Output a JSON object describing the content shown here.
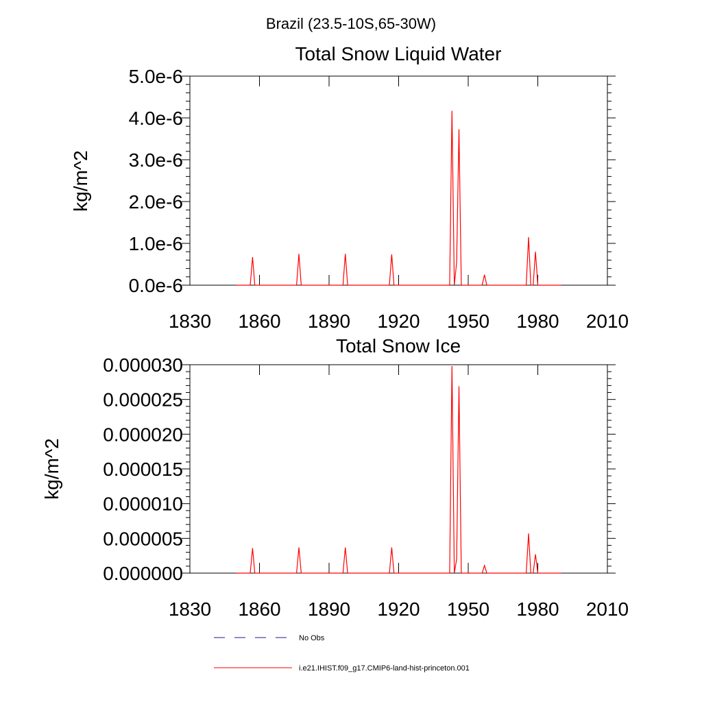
{
  "figure": {
    "region_title": "Brazil (23.5-10S,65-30W)"
  },
  "legend": {
    "entries": [
      {
        "label": "No Obs",
        "color": "#1a1a8c",
        "style": "dashed"
      },
      {
        "label": "i.e21.IHIST.f09_g17.CMIP6-land-hist-princeton.001",
        "color": "#ff0000",
        "style": "solid"
      }
    ]
  },
  "chart_data": [
    {
      "type": "line",
      "title": "Total Snow Liquid Water",
      "xlabel": "",
      "ylabel": "kg/m^2",
      "xlim": [
        1830,
        2010
      ],
      "ylim": [
        0,
        5e-06
      ],
      "xticks": [
        1830,
        1860,
        1890,
        1920,
        1950,
        1980,
        2010
      ],
      "xtick_labels": [
        "1830",
        "1860",
        "1890",
        "1920",
        "1950",
        "1980",
        "2010"
      ],
      "yticks": [
        0,
        1e-06,
        2e-06,
        3e-06,
        4e-06,
        5e-06
      ],
      "ytick_labels": [
        "0.0e-6",
        "1.0e-6",
        "2.0e-6",
        "3.0e-6",
        "4.0e-6",
        "5.0e-6"
      ],
      "grid": false,
      "series": [
        {
          "name": "i.e21.IHIST.f09_g17.CMIP6-land-hist-princeton.001",
          "color": "#ff0000",
          "x": [
            1850,
            1856,
            1857,
            1858,
            1876,
            1877,
            1878,
            1896,
            1897,
            1898,
            1916,
            1917,
            1918,
            1941,
            1942,
            1943,
            1944,
            1945,
            1946,
            1947,
            1948,
            1956,
            1957,
            1958,
            1975,
            1976,
            1977,
            1978,
            1979,
            1980,
            1990
          ],
          "y": [
            0,
            0,
            6.7e-07,
            0,
            0,
            7.5e-07,
            0,
            0,
            7.5e-07,
            0,
            0,
            7.4e-07,
            0,
            0,
            0,
            4.17e-06,
            0,
            5.5e-07,
            3.73e-06,
            0,
            0,
            0,
            2.5e-07,
            0,
            0,
            1.15e-06,
            0,
            0,
            8e-07,
            0,
            0
          ]
        }
      ]
    },
    {
      "type": "line",
      "title": "Total Snow Ice",
      "xlabel": "",
      "ylabel": "kg/m^2",
      "xlim": [
        1830,
        2010
      ],
      "ylim": [
        0,
        3e-05
      ],
      "xticks": [
        1830,
        1860,
        1890,
        1920,
        1950,
        1980,
        2010
      ],
      "xtick_labels": [
        "1830",
        "1860",
        "1890",
        "1920",
        "1950",
        "1980",
        "2010"
      ],
      "yticks": [
        0,
        5e-06,
        1e-05,
        1.5e-05,
        2e-05,
        2.5e-05,
        3e-05
      ],
      "ytick_labels": [
        "0.000000",
        "0.000005",
        "0.000010",
        "0.000015",
        "0.000020",
        "0.000025",
        "0.000030"
      ],
      "grid": false,
      "series": [
        {
          "name": "i.e21.IHIST.f09_g17.CMIP6-land-hist-princeton.001",
          "color": "#ff0000",
          "x": [
            1850,
            1856,
            1857,
            1858,
            1876,
            1877,
            1878,
            1896,
            1897,
            1898,
            1916,
            1917,
            1918,
            1941,
            1942,
            1943,
            1944,
            1945,
            1946,
            1947,
            1948,
            1955,
            1956,
            1957,
            1958,
            1975,
            1976,
            1977,
            1978,
            1979,
            1980,
            1990
          ],
          "y": [
            0,
            0,
            3.6e-06,
            0,
            0,
            3.7e-06,
            0,
            0,
            3.7e-06,
            0,
            0,
            3.7e-06,
            0,
            0,
            0,
            2.98e-05,
            0,
            2e-06,
            2.69e-05,
            0,
            0,
            0,
            0,
            1.1e-06,
            0,
            0,
            5.7e-06,
            0,
            0,
            2.7e-06,
            0,
            0
          ]
        }
      ]
    }
  ]
}
